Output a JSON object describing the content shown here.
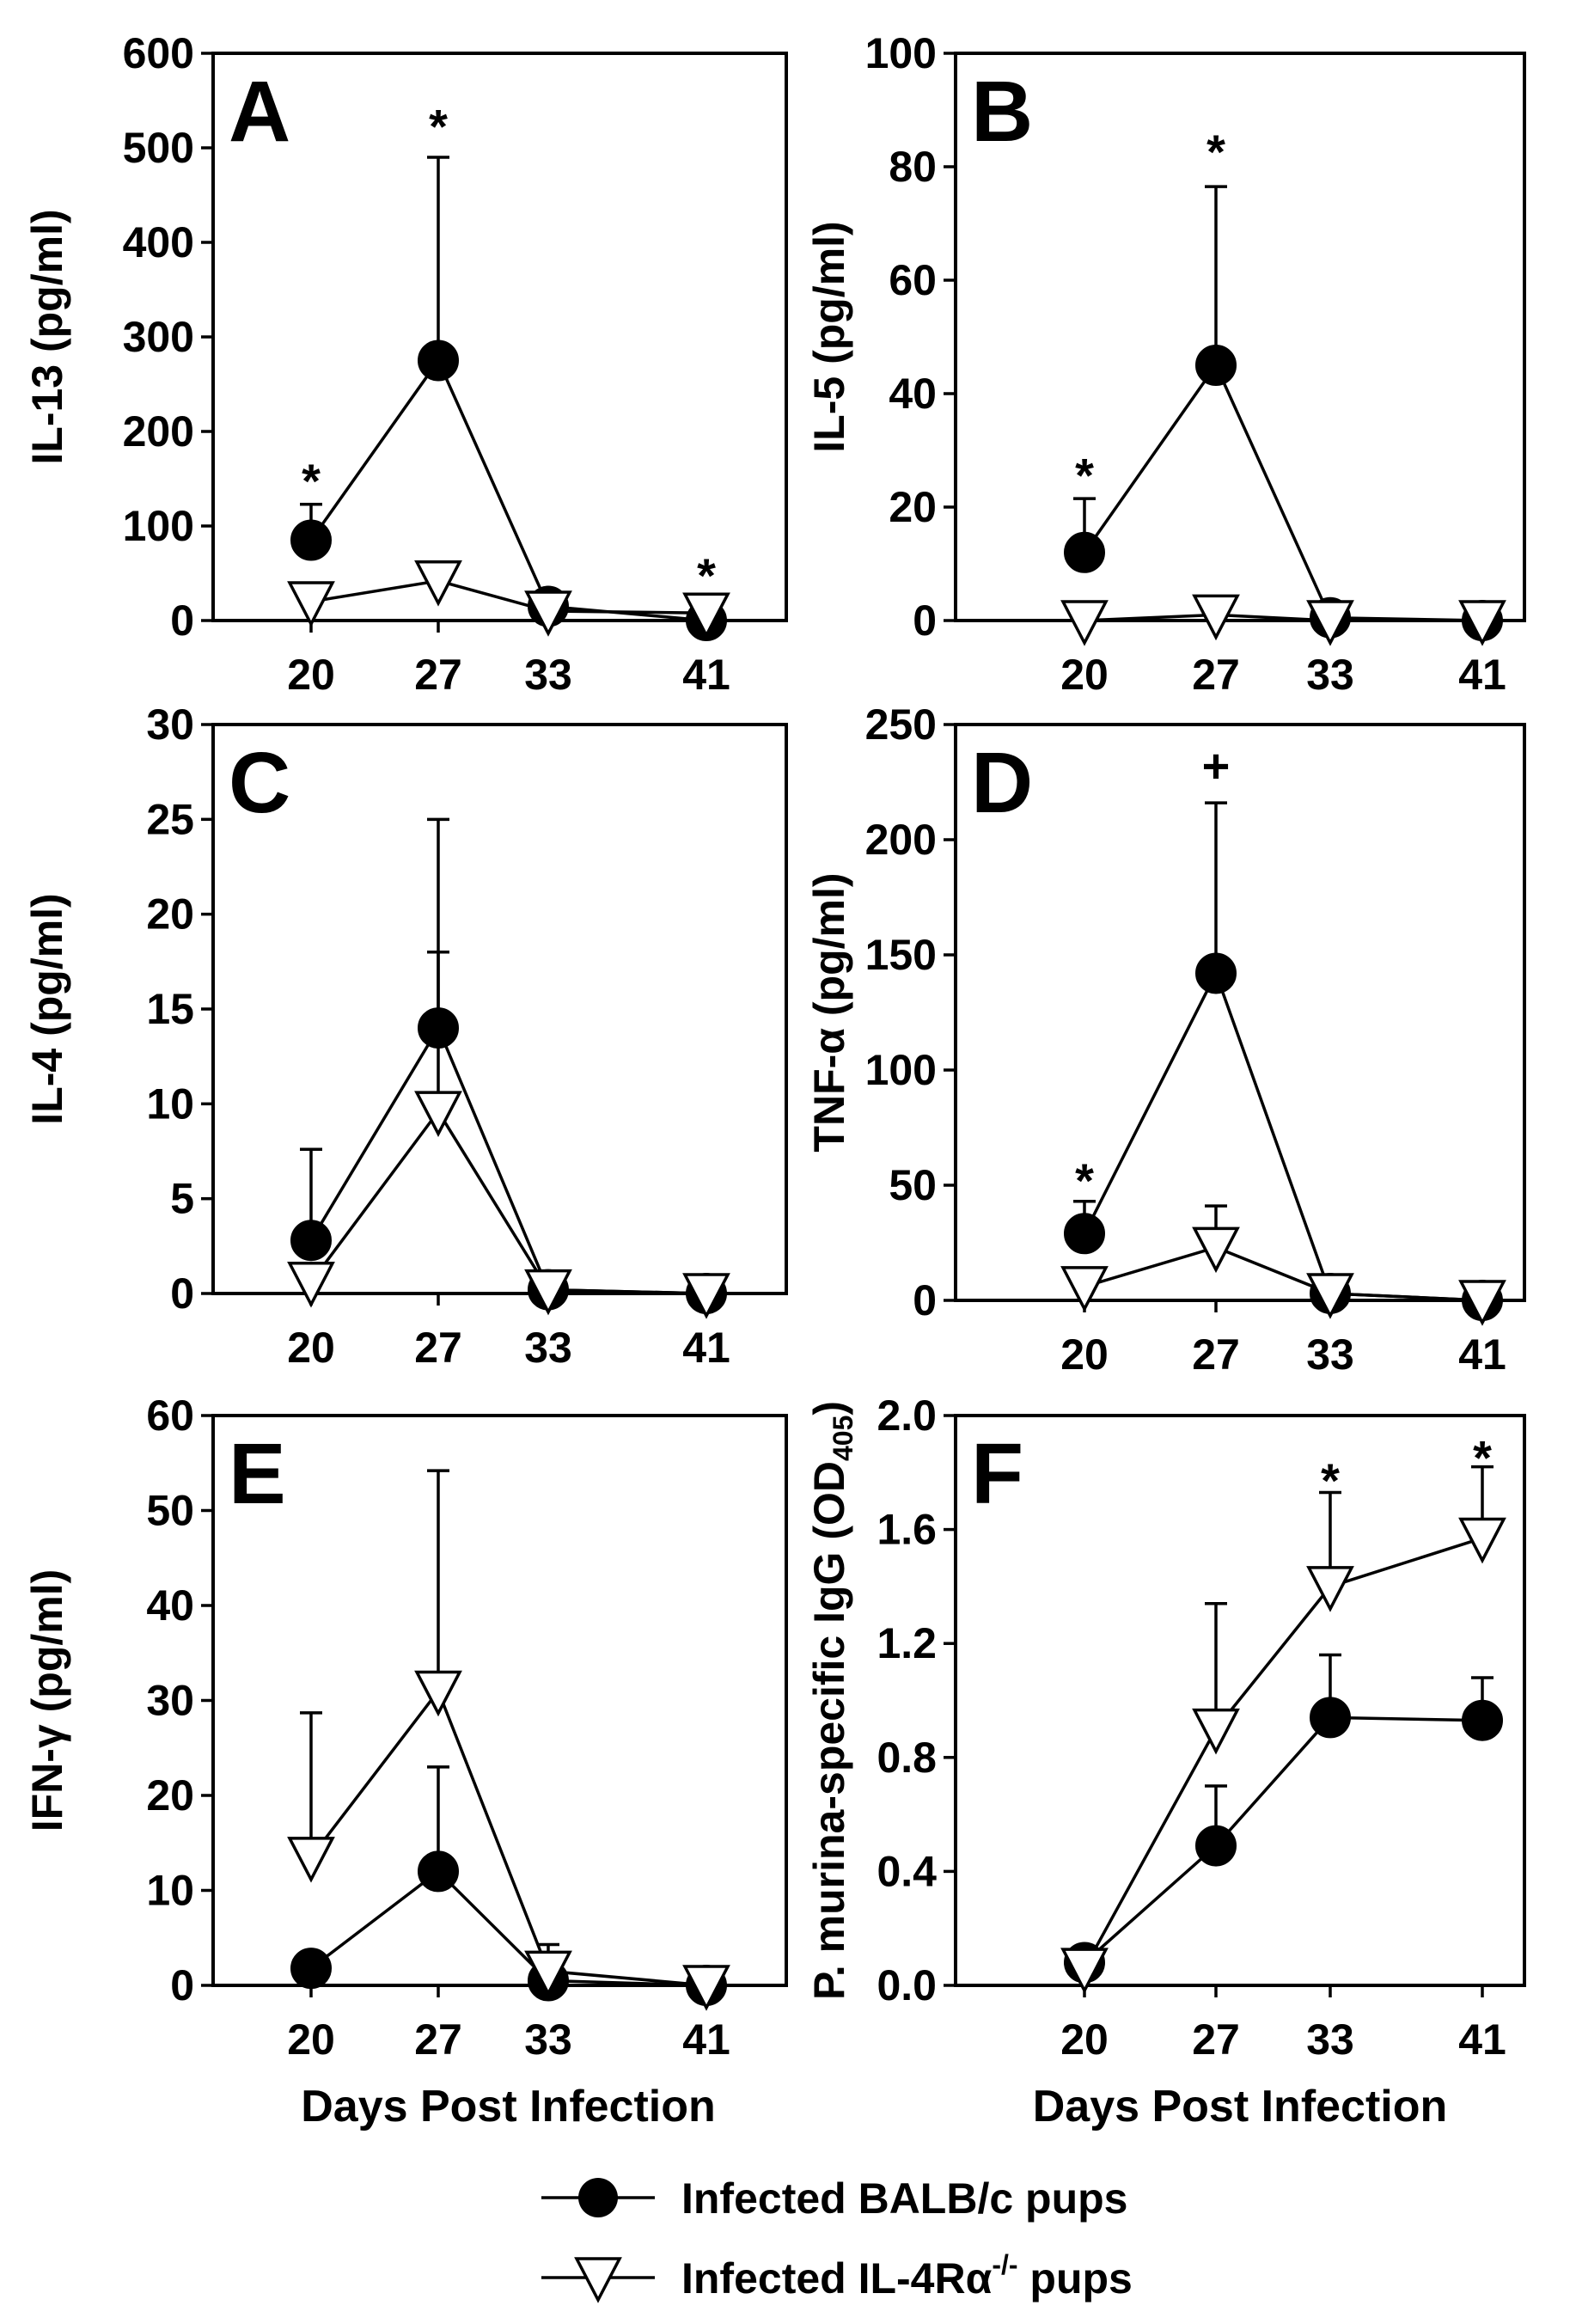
{
  "chart_data": [
    {
      "panel": "A",
      "type": "line",
      "ylabel": "IL-13 (pg/ml)",
      "xlabel": "",
      "ylim": [
        0,
        600
      ],
      "yticks": [
        0,
        100,
        200,
        300,
        400,
        500,
        600
      ],
      "yticklabels": [
        "0",
        "100",
        "200",
        "300",
        "400",
        "500",
        "600"
      ],
      "x": [
        20,
        27,
        33,
        41
      ],
      "xticklabels": [
        "20",
        "27",
        "33",
        "41"
      ],
      "series": [
        {
          "name": "Infected BALB/c pups",
          "marker": "filled-circle",
          "values": [
            85,
            275,
            15,
            0
          ],
          "errors": [
            38,
            215,
            0,
            0
          ]
        },
        {
          "name": "Infected IL-4Ra-/- pups",
          "marker": "open-triangle-down",
          "values": [
            20,
            42,
            10,
            8
          ],
          "errors": [
            0,
            20,
            0,
            0
          ]
        }
      ],
      "annotations": [
        {
          "text": "*",
          "x": 20,
          "y": 150
        },
        {
          "text": "*",
          "x": 27,
          "y": 525
        },
        {
          "text": "*",
          "x": 41,
          "y": 50
        }
      ]
    },
    {
      "panel": "B",
      "type": "line",
      "ylabel": "IL-5 (pg/ml)",
      "xlabel": "",
      "ylim": [
        0,
        100
      ],
      "yticks": [
        0,
        20,
        40,
        60,
        80,
        100
      ],
      "yticklabels": [
        "0",
        "20",
        "40",
        "60",
        "80",
        "100"
      ],
      "x": [
        20,
        27,
        33,
        41
      ],
      "xticklabels": [
        "20",
        "27",
        "33",
        "41"
      ],
      "series": [
        {
          "name": "Infected BALB/c pups",
          "marker": "filled-circle",
          "values": [
            12,
            45,
            0.5,
            0
          ],
          "errors": [
            9.5,
            31.5,
            0,
            0
          ]
        },
        {
          "name": "Infected IL-4Ra-/- pups",
          "marker": "open-triangle-down",
          "values": [
            0,
            1,
            0,
            0
          ],
          "errors": [
            0,
            0,
            0,
            0
          ]
        }
      ],
      "annotations": [
        {
          "text": "*",
          "x": 20,
          "y": 26
        },
        {
          "text": "*",
          "x": 27,
          "y": 83
        }
      ]
    },
    {
      "panel": "C",
      "type": "line",
      "ylabel": "IL-4 (pg/ml)",
      "xlabel": "",
      "ylim": [
        0,
        30
      ],
      "yticks": [
        0,
        5,
        10,
        15,
        20,
        25,
        30
      ],
      "yticklabels": [
        "0",
        "5",
        "10",
        "15",
        "20",
        "25",
        "30"
      ],
      "x": [
        20,
        27,
        33,
        41
      ],
      "xticklabels": [
        "20",
        "27",
        "33",
        "41"
      ],
      "series": [
        {
          "name": "Infected BALB/c pups",
          "marker": "filled-circle",
          "values": [
            2.8,
            14,
            0.2,
            0
          ],
          "errors": [
            4.8,
            11,
            0,
            0
          ]
        },
        {
          "name": "Infected IL-4Ra-/- pups",
          "marker": "open-triangle-down",
          "values": [
            0.6,
            9.6,
            0.2,
            0
          ],
          "errors": [
            0,
            8.4,
            0,
            0
          ]
        }
      ],
      "annotations": []
    },
    {
      "panel": "D",
      "type": "line",
      "ylabel": "TNF-α (pg/ml)",
      "xlabel": "",
      "ylim": [
        0,
        250
      ],
      "yticks": [
        0,
        50,
        100,
        150,
        200,
        250
      ],
      "yticklabels": [
        "0",
        "50",
        "100",
        "150",
        "200",
        "250"
      ],
      "x": [
        20,
        27,
        33,
        41
      ],
      "xticklabels": [
        "20",
        "27",
        "33",
        "41"
      ],
      "series": [
        {
          "name": "Infected BALB/c pups",
          "marker": "filled-circle",
          "values": [
            29,
            142,
            3,
            0
          ],
          "errors": [
            14,
            74,
            4,
            0
          ]
        },
        {
          "name": "Infected IL-4Ra-/- pups",
          "marker": "open-triangle-down",
          "values": [
            6,
            23,
            3,
            0
          ],
          "errors": [
            0,
            18,
            0,
            0
          ]
        }
      ],
      "annotations": [
        {
          "text": "*",
          "x": 20,
          "y": 53
        },
        {
          "text": "+",
          "x": 27,
          "y": 233
        }
      ]
    },
    {
      "panel": "E",
      "type": "line",
      "ylabel": "IFN-γ (pg/ml)",
      "xlabel": "Days Post Infection",
      "ylim": [
        0,
        60
      ],
      "yticks": [
        0,
        10,
        20,
        30,
        40,
        50,
        60
      ],
      "yticklabels": [
        "0",
        "10",
        "20",
        "30",
        "40",
        "50",
        "60"
      ],
      "x": [
        20,
        27,
        33,
        41
      ],
      "xticklabels": [
        "20",
        "27",
        "33",
        "41"
      ],
      "series": [
        {
          "name": "Infected BALB/c pups",
          "marker": "filled-circle",
          "values": [
            1.8,
            12,
            0.5,
            0
          ],
          "errors": [
            0,
            11,
            0,
            0
          ]
        },
        {
          "name": "Infected IL-4Ra-/- pups",
          "marker": "open-triangle-down",
          "values": [
            13.5,
            31,
            1.5,
            0
          ],
          "errors": [
            15.2,
            23.2,
            2.8,
            0
          ]
        }
      ],
      "annotations": []
    },
    {
      "panel": "F",
      "type": "line",
      "ylabel": "P. murina-specific IgG (OD",
      "ylabel_sub": "405",
      "ylabel_end": ")",
      "xlabel": "Days Post Infection",
      "ylim": [
        0,
        2.0
      ],
      "yticks": [
        0,
        0.4,
        0.8,
        1.2,
        1.6,
        2.0
      ],
      "yticklabels": [
        "0.0",
        "0.4",
        "0.8",
        "1.2",
        "1.6",
        "2.0"
      ],
      "x": [
        20,
        27,
        33,
        41
      ],
      "xticklabels": [
        "20",
        "27",
        "33",
        "41"
      ],
      "series": [
        {
          "name": "Infected BALB/c pups",
          "marker": "filled-circle",
          "values": [
            0.08,
            0.49,
            0.94,
            0.93
          ],
          "errors": [
            0,
            0.21,
            0.22,
            0.15
          ]
        },
        {
          "name": "Infected IL-4Ra-/- pups",
          "marker": "open-triangle-down",
          "values": [
            0.06,
            0.9,
            1.4,
            1.57
          ],
          "errors": [
            0,
            0.44,
            0.33,
            0.25
          ]
        }
      ],
      "annotations": [
        {
          "text": "*",
          "x": 33,
          "y": 1.78
        },
        {
          "text": "*",
          "x": 41,
          "y": 1.86
        }
      ]
    }
  ],
  "legend": {
    "items": [
      {
        "marker": "filled-circle",
        "label": "Infected BALB/c pups"
      },
      {
        "marker": "open-triangle-down",
        "label_main": "Infected IL-4Rα",
        "label_sup": "-/-",
        "label_end": " pups"
      }
    ]
  }
}
